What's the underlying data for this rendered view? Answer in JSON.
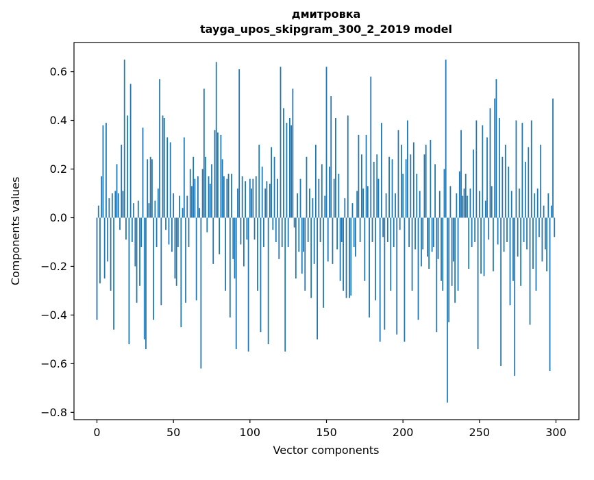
{
  "figure": {
    "title_line1": "дмитровка",
    "title_line2": "tayga_upos_skipgram_300_2_2019 model",
    "xlabel": "Vector components",
    "ylabel": "Components values"
  },
  "chart_data": {
    "type": "bar",
    "title": "дмитровка — tayga_upos_skipgram_300_2_2019 model",
    "xlabel": "Vector components",
    "ylabel": "Components values",
    "xlim": [
      -15,
      315
    ],
    "ylim": [
      -0.83,
      0.72
    ],
    "x_ticks": [
      0,
      50,
      100,
      150,
      200,
      250,
      300
    ],
    "y_ticks": [
      0.6,
      0.4,
      0.2,
      0.0,
      -0.2,
      -0.4,
      -0.6,
      -0.8
    ],
    "bar_color": "#1f77b4",
    "grid": false,
    "legend": false,
    "values": [
      -0.42,
      0.05,
      -0.27,
      0.17,
      0.38,
      -0.25,
      0.39,
      -0.18,
      0.08,
      -0.3,
      0.1,
      -0.46,
      0.11,
      0.22,
      0.1,
      -0.05,
      0.3,
      0.11,
      0.65,
      -0.09,
      0.42,
      -0.52,
      0.55,
      -0.1,
      0.06,
      -0.2,
      -0.35,
      0.07,
      -0.28,
      -0.12,
      0.37,
      -0.5,
      -0.54,
      0.24,
      0.06,
      0.25,
      0.24,
      -0.42,
      0.07,
      -0.12,
      0.12,
      0.57,
      -0.36,
      0.42,
      0.41,
      -0.05,
      0.33,
      -0.11,
      0.31,
      -0.14,
      0.1,
      -0.25,
      -0.28,
      -0.12,
      0.09,
      -0.45,
      0.04,
      0.33,
      -0.35,
      0.09,
      -0.12,
      0.2,
      0.13,
      0.25,
      0.16,
      -0.34,
      0.17,
      0.04,
      -0.62,
      0.2,
      0.53,
      0.25,
      -0.06,
      0.17,
      0.14,
      0.22,
      -0.19,
      0.36,
      0.64,
      0.35,
      -0.15,
      0.34,
      0.24,
      0.17,
      -0.3,
      0.16,
      0.18,
      -0.41,
      0.18,
      -0.17,
      -0.25,
      -0.54,
      0.12,
      0.61,
      -0.11,
      0.17,
      -0.2,
      0.15,
      -0.09,
      -0.55,
      0.16,
      0.12,
      0.16,
      -0.09,
      0.17,
      -0.3,
      0.3,
      -0.47,
      0.21,
      -0.12,
      0.12,
      0.15,
      -0.52,
      0.14,
      0.29,
      -0.05,
      0.25,
      -0.1,
      0.16,
      -0.17,
      0.62,
      -0.12,
      0.45,
      -0.55,
      0.39,
      -0.12,
      0.41,
      0.38,
      0.53,
      -0.04,
      -0.25,
      0.1,
      -0.14,
      0.16,
      -0.23,
      -0.14,
      -0.3,
      0.25,
      -0.1,
      0.12,
      -0.33,
      0.08,
      -0.19,
      0.3,
      -0.5,
      0.16,
      -0.1,
      0.22,
      -0.37,
      0.09,
      0.62,
      -0.18,
      0.21,
      0.5,
      -0.19,
      0.16,
      0.41,
      -0.13,
      0.18,
      -0.26,
      -0.1,
      -0.3,
      0.08,
      -0.33,
      0.42,
      -0.33,
      -0.32,
      0.06,
      -0.12,
      -0.16,
      0.11,
      0.34,
      -0.1,
      0.26,
      0.12,
      -0.26,
      0.34,
      0.13,
      -0.41,
      0.58,
      -0.1,
      0.23,
      -0.34,
      0.26,
      0.16,
      -0.51,
      0.39,
      -0.08,
      -0.46,
      0.1,
      -0.1,
      0.25,
      -0.3,
      0.24,
      -0.12,
      0.1,
      -0.48,
      0.36,
      -0.05,
      0.3,
      0.18,
      -0.51,
      0.24,
      0.4,
      -0.12,
      0.26,
      -0.3,
      0.31,
      -0.13,
      0.18,
      -0.42,
      0.11,
      -0.2,
      -0.13,
      0.26,
      0.3,
      -0.16,
      -0.21,
      0.32,
      -0.14,
      -0.12,
      0.22,
      -0.47,
      -0.17,
      0.11,
      -0.26,
      -0.3,
      0.2,
      0.65,
      -0.76,
      -0.43,
      0.13,
      -0.28,
      -0.18,
      -0.35,
      0.1,
      -0.3,
      0.19,
      0.36,
      0.09,
      0.12,
      0.18,
      0.09,
      -0.21,
      0.12,
      -0.12,
      0.28,
      -0.1,
      0.4,
      -0.54,
      0.11,
      -0.23,
      0.38,
      -0.24,
      0.07,
      0.33,
      -0.09,
      0.45,
      0.13,
      -0.22,
      0.49,
      0.57,
      -0.11,
      0.41,
      -0.61,
      0.25,
      -0.14,
      0.3,
      -0.1,
      0.21,
      -0.36,
      0.11,
      -0.26,
      -0.65,
      0.4,
      -0.16,
      0.12,
      -0.28,
      0.39,
      -0.1,
      0.23,
      -0.13,
      0.29,
      -0.44,
      0.4,
      -0.21,
      0.1,
      -0.3,
      0.12,
      -0.08,
      0.3,
      -0.18,
      0.05,
      -0.13,
      -0.22,
      0.1,
      -0.63,
      0.05,
      0.49,
      -0.08
    ]
  }
}
